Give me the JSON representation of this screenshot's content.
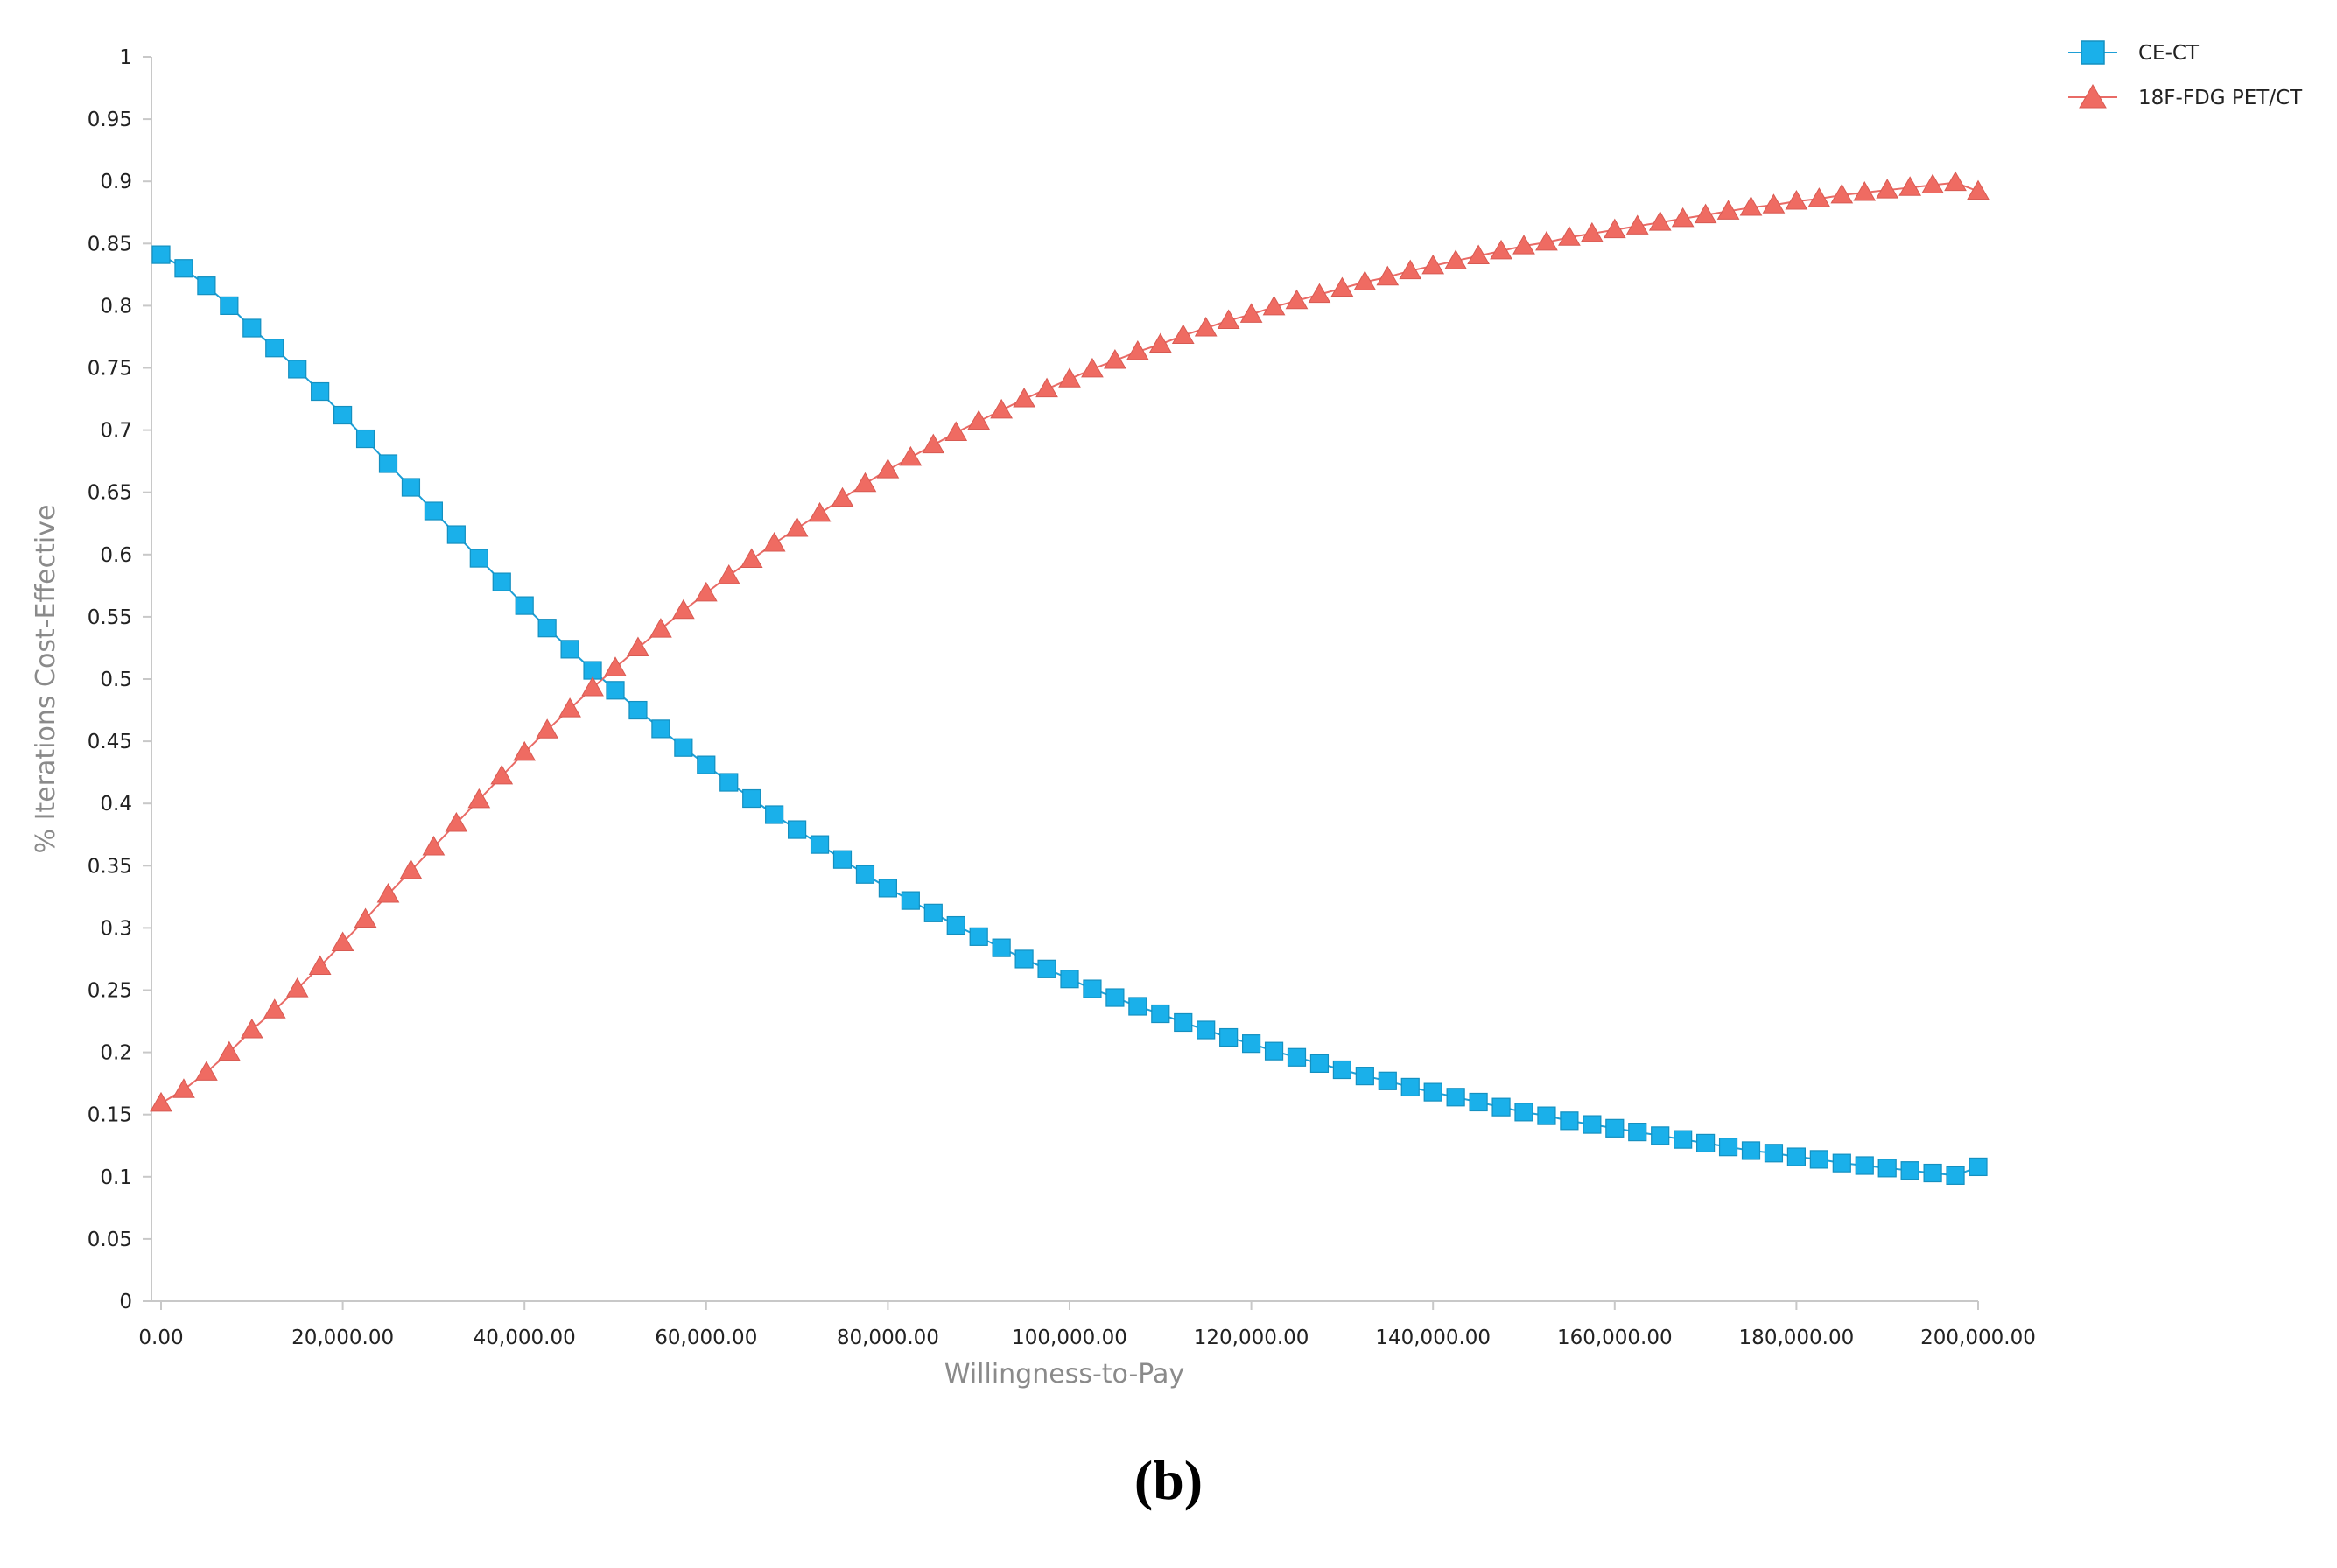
{
  "caption": "(b)",
  "colors": {
    "ce_ct": "#1ab0ea",
    "pet_ct": "#ef6b62",
    "axis": "#c8c8c8",
    "ce_ct_line": "#1e9fd6",
    "pet_ct_line": "#e96b66"
  },
  "chart_data": {
    "type": "line",
    "xlabel": "Willingness-to-Pay",
    "ylabel": "% Iterations Cost-Effective",
    "xlim": [
      0,
      200000
    ],
    "ylim": [
      0,
      1
    ],
    "xticks": [
      0,
      20000,
      40000,
      60000,
      80000,
      100000,
      120000,
      140000,
      160000,
      180000,
      200000
    ],
    "xtick_labels": [
      "0.00",
      "20,000.00",
      "40,000.00",
      "60,000.00",
      "80,000.00",
      "100,000.00",
      "120,000.00",
      "140,000.00",
      "160,000.00",
      "180,000.00",
      "200,000.00"
    ],
    "yticks": [
      0,
      0.05,
      0.1,
      0.15,
      0.2,
      0.25,
      0.3,
      0.35,
      0.4,
      0.45,
      0.5,
      0.55,
      0.6,
      0.65,
      0.7,
      0.75,
      0.8,
      0.85,
      0.9,
      0.95,
      1
    ],
    "ytick_labels": [
      "0",
      "0.05",
      "0.1",
      "0.15",
      "0.2",
      "0.25",
      "0.3",
      "0.35",
      "0.4",
      "0.45",
      "0.5",
      "0.55",
      "0.6",
      "0.65",
      "0.7",
      "0.75",
      "0.8",
      "0.85",
      "0.9",
      "0.95",
      "1"
    ],
    "grid": false,
    "legend_position": "top-right",
    "x": [
      0,
      2500,
      5000,
      7500,
      10000,
      12500,
      15000,
      17500,
      20000,
      22500,
      25000,
      27500,
      30000,
      32500,
      35000,
      37500,
      40000,
      42500,
      45000,
      47500,
      50000,
      52500,
      55000,
      57500,
      60000,
      62500,
      65000,
      67500,
      70000,
      72500,
      75000,
      77500,
      80000,
      82500,
      85000,
      87500,
      90000,
      92500,
      95000,
      97500,
      100000,
      102500,
      105000,
      107500,
      110000,
      112500,
      115000,
      117500,
      120000,
      122500,
      125000,
      127500,
      130000,
      132500,
      135000,
      137500,
      140000,
      142500,
      145000,
      147500,
      150000,
      152500,
      155000,
      157500,
      160000,
      162500,
      165000,
      167500,
      170000,
      172500,
      175000,
      177500,
      180000,
      182500,
      185000,
      187500,
      190000,
      192500,
      195000,
      197500,
      200000
    ],
    "series": [
      {
        "name": "CE-CT",
        "marker": "square",
        "values": [
          0.841,
          0.83,
          0.816,
          0.8,
          0.782,
          0.766,
          0.749,
          0.731,
          0.712,
          0.693,
          0.673,
          0.654,
          0.635,
          0.616,
          0.597,
          0.578,
          0.559,
          0.541,
          0.524,
          0.507,
          0.491,
          0.475,
          0.46,
          0.445,
          0.431,
          0.417,
          0.404,
          0.391,
          0.379,
          0.367,
          0.355,
          0.343,
          0.332,
          0.322,
          0.312,
          0.302,
          0.293,
          0.284,
          0.275,
          0.267,
          0.259,
          0.251,
          0.244,
          0.237,
          0.231,
          0.224,
          0.218,
          0.212,
          0.207,
          0.201,
          0.196,
          0.191,
          0.186,
          0.181,
          0.177,
          0.172,
          0.168,
          0.164,
          0.16,
          0.156,
          0.152,
          0.149,
          0.145,
          0.142,
          0.139,
          0.136,
          0.133,
          0.13,
          0.127,
          0.124,
          0.121,
          0.119,
          0.116,
          0.114,
          0.111,
          0.109,
          0.107,
          0.105,
          0.103,
          0.101,
          0.108
        ]
      },
      {
        "name": "18F-FDG PET/CT",
        "marker": "triangle",
        "values": [
          0.159,
          0.17,
          0.184,
          0.2,
          0.218,
          0.234,
          0.251,
          0.269,
          0.288,
          0.307,
          0.327,
          0.346,
          0.365,
          0.384,
          0.403,
          0.422,
          0.441,
          0.459,
          0.476,
          0.493,
          0.509,
          0.525,
          0.54,
          0.555,
          0.569,
          0.583,
          0.596,
          0.609,
          0.621,
          0.633,
          0.645,
          0.657,
          0.668,
          0.678,
          0.688,
          0.698,
          0.707,
          0.716,
          0.725,
          0.733,
          0.741,
          0.749,
          0.756,
          0.763,
          0.769,
          0.776,
          0.782,
          0.788,
          0.793,
          0.799,
          0.804,
          0.809,
          0.814,
          0.819,
          0.823,
          0.828,
          0.832,
          0.836,
          0.84,
          0.844,
          0.848,
          0.851,
          0.855,
          0.858,
          0.861,
          0.864,
          0.867,
          0.87,
          0.873,
          0.876,
          0.879,
          0.881,
          0.884,
          0.886,
          0.889,
          0.891,
          0.893,
          0.895,
          0.897,
          0.899,
          0.892
        ]
      }
    ]
  }
}
